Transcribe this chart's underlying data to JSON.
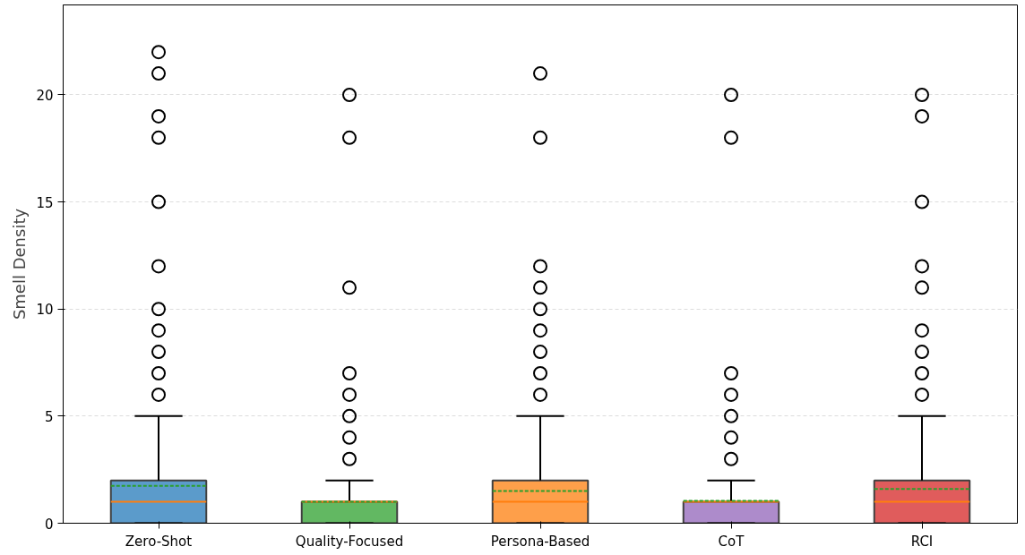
{
  "chart_data": {
    "type": "box",
    "ylabel": "Smell Density",
    "categories": [
      "Zero-Shot",
      "Quality-Focused",
      "Persona-Based",
      "CoT",
      "RCI"
    ],
    "colors": [
      "#5b9bcb",
      "#62b862",
      "#fe9f4a",
      "#ad8bcb",
      "#e05c5c"
    ],
    "boxes": [
      {
        "low": 0,
        "q1": 0,
        "median": 1,
        "q3": 2,
        "high": 5,
        "mean": 1.75,
        "outliers": [
          6,
          7,
          8,
          9,
          10,
          12,
          15,
          18,
          19,
          21,
          22
        ]
      },
      {
        "low": 0,
        "q1": 0,
        "median": 1,
        "q3": 1,
        "high": 2,
        "mean": 1.0,
        "outliers": [
          3,
          4,
          5,
          6,
          7,
          11,
          18,
          20
        ]
      },
      {
        "low": 0,
        "q1": 0,
        "median": 1,
        "q3": 2,
        "high": 5,
        "mean": 1.5,
        "outliers": [
          6,
          7,
          8,
          9,
          10,
          11,
          12,
          18,
          21
        ]
      },
      {
        "low": 0,
        "q1": 0,
        "median": 1,
        "q3": 1,
        "high": 2,
        "mean": 1.05,
        "outliers": [
          3,
          4,
          5,
          6,
          7,
          18,
          20
        ]
      },
      {
        "low": 0,
        "q1": 0,
        "median": 1,
        "q3": 2,
        "high": 5,
        "mean": 1.6,
        "outliers": [
          6,
          7,
          8,
          9,
          11,
          12,
          15,
          19,
          20
        ]
      }
    ],
    "ylim": [
      0,
      24.2
    ],
    "yticks": [
      0,
      5,
      10,
      15,
      20
    ],
    "grid": "y",
    "marker": "circle"
  }
}
